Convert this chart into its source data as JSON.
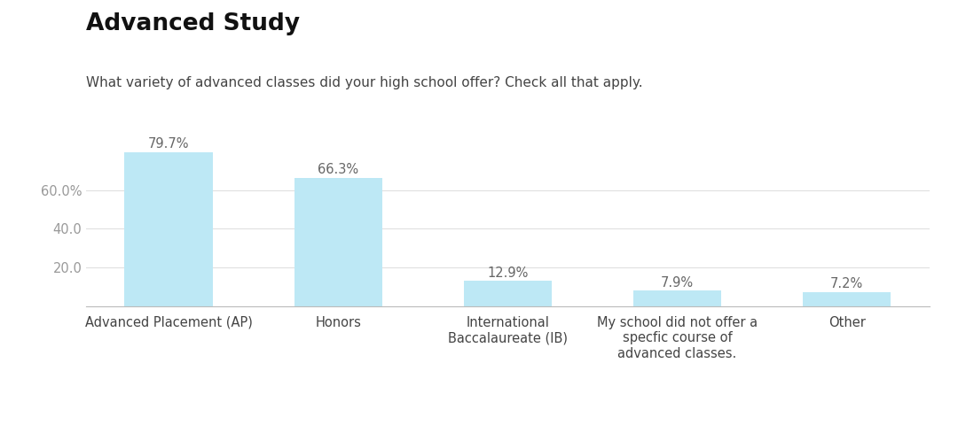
{
  "title": "Advanced Study",
  "subtitle": "What variety of advanced classes did your high school offer? Check all that apply.",
  "categories": [
    "Advanced Placement (AP)",
    "Honors",
    "International\nBaccalaureate (IB)",
    "My school did not offer a\nspecfic course of\nadvanced classes.",
    "Other"
  ],
  "values": [
    79.7,
    66.3,
    12.9,
    7.9,
    7.2
  ],
  "bar_color": "#BDE8F5",
  "ytick_labels": [
    "20.0",
    "40.0",
    "60.0%"
  ],
  "ytick_values": [
    20.0,
    40.0,
    60.0
  ],
  "ylim": [
    0,
    88
  ],
  "background_color": "#ffffff",
  "grid_color": "#e0e0e0",
  "title_fontsize": 19,
  "subtitle_fontsize": 11,
  "label_fontsize": 10.5,
  "value_fontsize": 10.5,
  "tick_fontsize": 10.5,
  "bar_width": 0.52
}
